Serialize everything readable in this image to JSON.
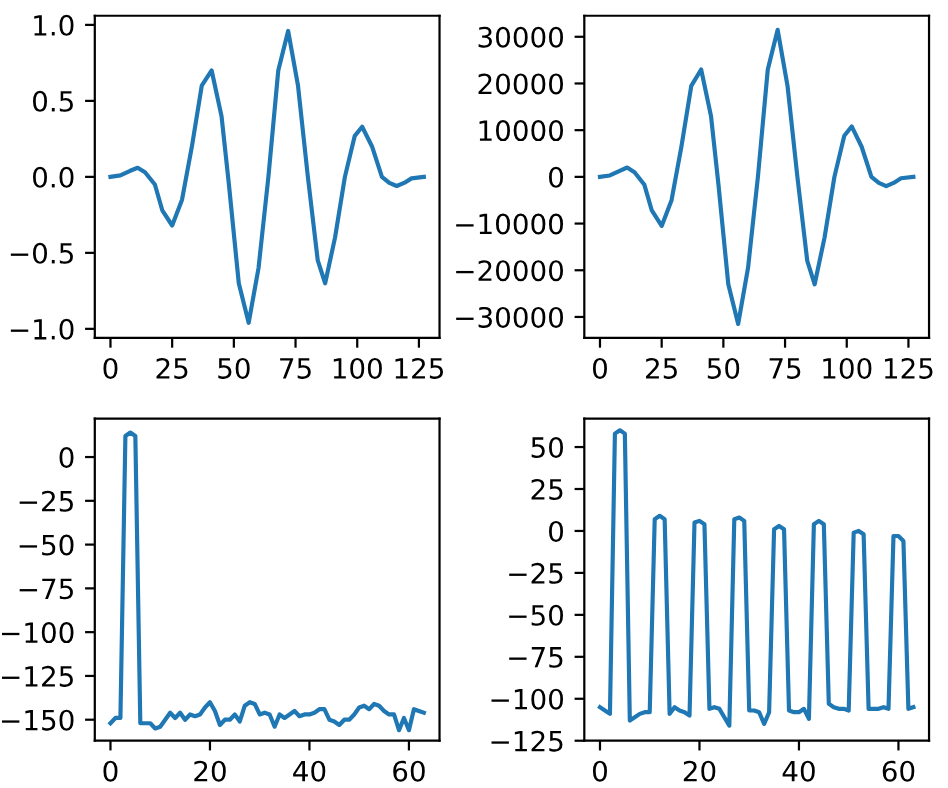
{
  "chart_data": [
    {
      "type": "line",
      "x": [
        0,
        4,
        8,
        11,
        14,
        18,
        21,
        25,
        29,
        33,
        37,
        41,
        45,
        48,
        52,
        56,
        60,
        64,
        68,
        72,
        76,
        80,
        84,
        87,
        91,
        95,
        99,
        102,
        106,
        110,
        113,
        116,
        119,
        122,
        127
      ],
      "series": [
        {
          "color": "#1f77b4",
          "values": [
            0,
            0.01,
            0.04,
            0.06,
            0.03,
            -0.05,
            -0.22,
            -0.32,
            -0.15,
            0.2,
            0.6,
            0.7,
            0.4,
            -0.05,
            -0.7,
            -0.96,
            -0.6,
            0.0,
            0.7,
            0.96,
            0.6,
            0.0,
            -0.55,
            -0.7,
            -0.4,
            0.0,
            0.27,
            0.33,
            0.2,
            0.0,
            -0.04,
            -0.06,
            -0.04,
            -0.01,
            0
          ]
        }
      ],
      "xlim": [
        -6.35,
        133.35
      ],
      "ylim": [
        -1.06,
        1.06
      ],
      "xticks": [
        0,
        25,
        50,
        75,
        100,
        125
      ],
      "yticks": [
        {
          "value": -1.0,
          "label": "−1.0"
        },
        {
          "value": -0.5,
          "label": "−0.5"
        },
        {
          "value": 0.0,
          "label": "0.0"
        },
        {
          "value": 0.5,
          "label": "0.5"
        },
        {
          "value": 1.0,
          "label": "1.0"
        }
      ],
      "grid": false,
      "legend": false
    },
    {
      "type": "line",
      "x": [
        0,
        4,
        8,
        11,
        14,
        18,
        21,
        25,
        29,
        33,
        37,
        41,
        45,
        48,
        52,
        56,
        60,
        64,
        68,
        72,
        76,
        80,
        84,
        87,
        91,
        95,
        99,
        102,
        106,
        110,
        113,
        116,
        119,
        122,
        127
      ],
      "series": [
        {
          "color": "#1f77b4",
          "values": [
            0,
            300,
            1300,
            2000,
            1000,
            -1700,
            -7200,
            -10500,
            -5000,
            6500,
            19500,
            23000,
            13000,
            -1600,
            -23000,
            -31500,
            -19500,
            0,
            23000,
            31500,
            19500,
            0,
            -18000,
            -23000,
            -13000,
            0,
            8800,
            10800,
            6500,
            0,
            -1300,
            -2000,
            -1300,
            -300,
            0
          ]
        }
      ],
      "xlim": [
        -6.35,
        133.35
      ],
      "ylim": [
        -34500,
        34500
      ],
      "xticks": [
        0,
        25,
        50,
        75,
        100,
        125
      ],
      "yticks": [
        {
          "value": -30000,
          "label": "−30000"
        },
        {
          "value": -20000,
          "label": "−20000"
        },
        {
          "value": -10000,
          "label": "−10000"
        },
        0,
        10000,
        20000,
        30000
      ],
      "grid": false,
      "legend": false
    },
    {
      "type": "line",
      "x": [
        0,
        1,
        2,
        3,
        4,
        5,
        6,
        7,
        8,
        9,
        10,
        11,
        12,
        13,
        14,
        15,
        16,
        17,
        18,
        19,
        20,
        21,
        22,
        23,
        24,
        25,
        26,
        27,
        28,
        29,
        30,
        31,
        32,
        33,
        34,
        35,
        36,
        37,
        38,
        39,
        40,
        41,
        42,
        43,
        44,
        45,
        46,
        47,
        48,
        49,
        50,
        51,
        52,
        53,
        54,
        55,
        56,
        57,
        58,
        59,
        60,
        61,
        62,
        63
      ],
      "series": [
        {
          "color": "#1f77b4",
          "values": [
            -152,
            -149,
            -149,
            12,
            14,
            12,
            -152,
            -152,
            -152,
            -155,
            -154,
            -150,
            -146,
            -149,
            -146,
            -150,
            -147,
            -148,
            -147,
            -143,
            -140,
            -145,
            -153,
            -150,
            -150,
            -147,
            -151,
            -142,
            -140,
            -141,
            -147,
            -146,
            -147,
            -154,
            -147,
            -149,
            -147,
            -145,
            -148,
            -147,
            -147,
            -146,
            -144,
            -144,
            -150,
            -151,
            -153,
            -150,
            -150,
            -147,
            -143,
            -142,
            -144,
            -141,
            -142,
            -145,
            -147,
            -147,
            -156,
            -149,
            -156,
            -144,
            -145,
            -146
          ]
        }
      ],
      "xlim": [
        -3.15,
        66.15
      ],
      "ylim": [
        -162,
        22
      ],
      "xticks": [
        0,
        20,
        40,
        60
      ],
      "yticks": [
        {
          "value": -150,
          "label": "−150"
        },
        {
          "value": -125,
          "label": "−125"
        },
        {
          "value": -100,
          "label": "−100"
        },
        {
          "value": -75,
          "label": "−75"
        },
        {
          "value": -50,
          "label": "−50"
        },
        {
          "value": -25,
          "label": "−25"
        },
        0
      ],
      "grid": false,
      "legend": false
    },
    {
      "type": "line",
      "x": [
        0,
        1,
        2,
        3,
        4,
        5,
        6,
        7,
        8,
        9,
        10,
        11,
        12,
        13,
        14,
        15,
        16,
        17,
        18,
        19,
        20,
        21,
        22,
        23,
        24,
        25,
        26,
        27,
        28,
        29,
        30,
        31,
        32,
        33,
        34,
        35,
        36,
        37,
        38,
        39,
        40,
        41,
        42,
        43,
        44,
        45,
        46,
        47,
        48,
        49,
        50,
        51,
        52,
        53,
        54,
        55,
        56,
        57,
        58,
        59,
        60,
        61,
        62,
        63
      ],
      "series": [
        {
          "color": "#1f77b4",
          "values": [
            -105,
            -107,
            -109,
            58,
            60,
            58,
            -113,
            -111,
            -109,
            -108,
            -108,
            7,
            9,
            7,
            -109,
            -105,
            -107,
            -108,
            -110,
            5,
            6,
            4,
            -106,
            -105,
            -106,
            -111,
            -116,
            7,
            8,
            6,
            -107,
            -107,
            -108,
            -115,
            -108,
            1,
            3,
            1,
            -107,
            -108,
            -108,
            -106,
            -112,
            4,
            6,
            4,
            -103,
            -105,
            -106,
            -106,
            -107,
            -1,
            0,
            -2,
            -106,
            -106,
            -106,
            -105,
            -106,
            -3,
            -3,
            -6,
            -106,
            -105
          ]
        }
      ],
      "xlim": [
        -3.15,
        66.15
      ],
      "ylim": [
        -125,
        67
      ],
      "xticks": [
        0,
        20,
        40,
        60
      ],
      "yticks": [
        {
          "value": -125,
          "label": "−125"
        },
        {
          "value": -100,
          "label": "−100"
        },
        {
          "value": -75,
          "label": "−75"
        },
        {
          "value": -50,
          "label": "−50"
        },
        {
          "value": -25,
          "label": "−25"
        },
        0,
        25,
        50
      ],
      "grid": false,
      "legend": false
    }
  ]
}
